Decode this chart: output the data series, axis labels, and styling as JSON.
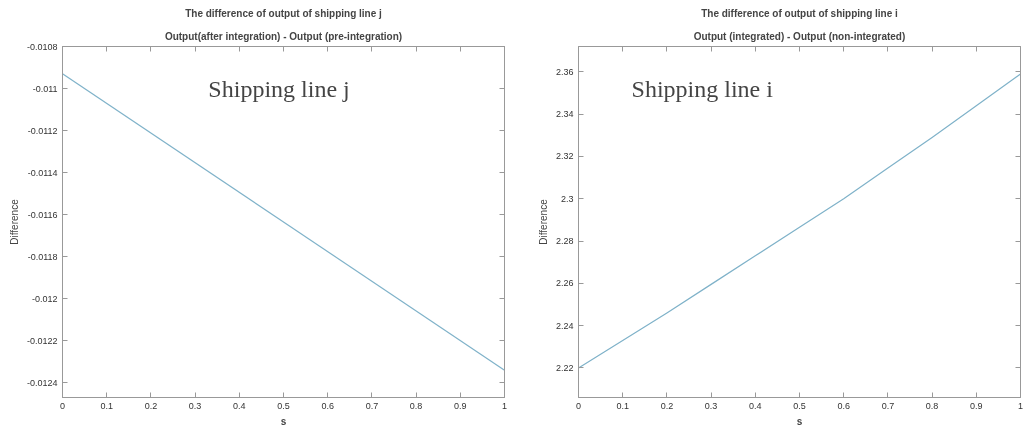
{
  "chart_data": [
    {
      "type": "line",
      "title": "The difference of output of shipping line j",
      "subtitle": "Output(after integration) - Output (pre-integration)",
      "xlabel": "s",
      "ylabel": "Difference",
      "annotations": [
        "Shipping line j"
      ],
      "x": [
        0,
        0.5,
        1
      ],
      "series": [
        {
          "color": "#7fb2c9",
          "values": [
            -0.01093,
            -0.011635,
            -0.01234
          ]
        }
      ],
      "xlim": [
        0,
        1
      ],
      "xticks": [
        0,
        0.1,
        0.2,
        0.3,
        0.4,
        0.5,
        0.6,
        0.7,
        0.8,
        0.9,
        1
      ],
      "ylim": [
        -0.01247,
        -0.0108
      ],
      "yticks": [
        -0.0124,
        -0.0122,
        -0.012,
        -0.0118,
        -0.0116,
        -0.0114,
        -0.0112,
        -0.011,
        -0.0108
      ],
      "grid": false,
      "marker": "none",
      "line_style": "solid"
    },
    {
      "type": "line",
      "title": "The difference of output of shipping line i",
      "subtitle": "Output (integrated) - Output (non-integrated)",
      "xlabel": "s",
      "ylabel": "Difference",
      "annotations": [
        "Shipping line i"
      ],
      "x": [
        0,
        0.1,
        0.2,
        0.3,
        0.4,
        0.5,
        0.6,
        0.7,
        0.8,
        0.9,
        1
      ],
      "series": [
        {
          "color": "#7fb2c9",
          "values": [
            2.22,
            2.233,
            2.246,
            2.2595,
            2.273,
            2.2865,
            2.3,
            2.3145,
            2.329,
            2.344,
            2.359
          ]
        }
      ],
      "xlim": [
        0,
        1
      ],
      "xticks": [
        0,
        0.1,
        0.2,
        0.3,
        0.4,
        0.5,
        0.6,
        0.7,
        0.8,
        0.9,
        1
      ],
      "ylim": [
        2.206,
        2.372
      ],
      "yticks": [
        2.22,
        2.24,
        2.26,
        2.28,
        2.3,
        2.32,
        2.34,
        2.36
      ],
      "grid": false,
      "marker": "none",
      "line_style": "solid"
    }
  ]
}
